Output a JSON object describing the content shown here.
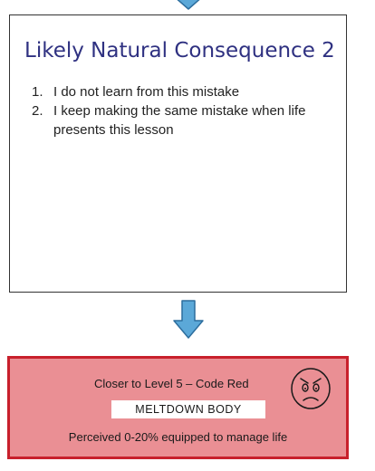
{
  "card": {
    "title": "Likely Natural Consequence 2",
    "items": [
      {
        "num": "1.",
        "text": "I do not learn from this mistake"
      },
      {
        "num": "2.",
        "text": "I keep making the same mistake when life presents this lesson"
      }
    ]
  },
  "status_box": {
    "level": "Closer to Level 5 – Code Red",
    "label": "MELTDOWN BODY",
    "perceived": "Perceived 0-20% equipped to manage life"
  },
  "icons": [
    "down-arrow-icon",
    "down-arrow-icon",
    "angry-face-icon"
  ],
  "colors": {
    "title": "#2f3181",
    "arrow_fill": "#5ba8d8",
    "arrow_stroke": "#2d6e9e",
    "box_fill": "#ea8f94",
    "box_border": "#c8202c"
  }
}
